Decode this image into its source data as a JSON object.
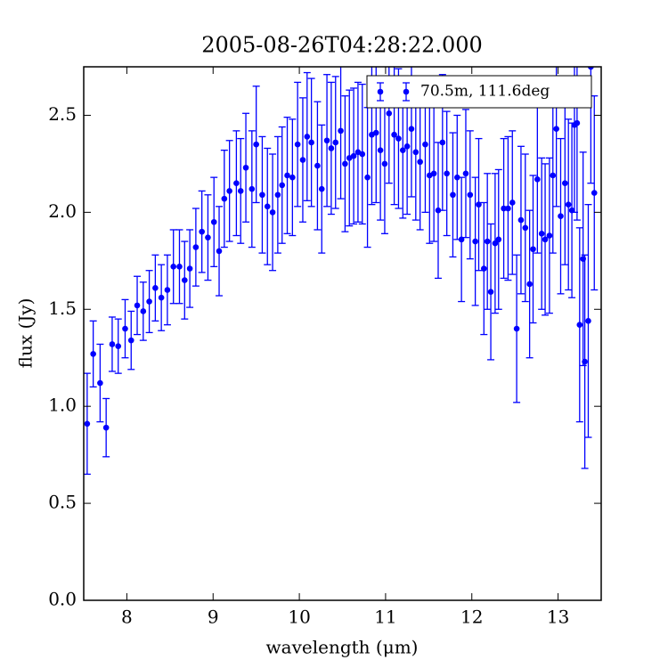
{
  "chart_data": {
    "type": "scatter",
    "title": "2005-08-26T04:28:22.000",
    "xlabel": "wavelength (μm)",
    "ylabel": "flux (Jy)",
    "xlim": [
      7.5,
      13.5
    ],
    "ylim": [
      0,
      2.75
    ],
    "xticks": [
      8,
      9,
      10,
      11,
      12,
      13
    ],
    "yticks": [
      {
        "value": 0,
        "label": "0.0"
      },
      {
        "value": 0.5,
        "label": "0.5"
      },
      {
        "value": 1,
        "label": "1.0"
      },
      {
        "value": 1.5,
        "label": "1.5"
      },
      {
        "value": 2,
        "label": "2.0"
      },
      {
        "value": 2.5,
        "label": "2.5"
      }
    ],
    "grid": false,
    "legend": "upper right",
    "series": [
      {
        "name": "70.5m, 111.6deg",
        "color": "#0000ff",
        "x": [
          7.54,
          7.61,
          7.69,
          7.76,
          7.83,
          7.9,
          7.98,
          8.05,
          8.12,
          8.19,
          8.26,
          8.33,
          8.4,
          8.47,
          8.54,
          8.61,
          8.67,
          8.73,
          8.8,
          8.87,
          8.94,
          9.01,
          9.07,
          9.13,
          9.19,
          9.27,
          9.32,
          9.38,
          9.45,
          9.5,
          9.57,
          9.63,
          9.69,
          9.75,
          9.8,
          9.86,
          9.92,
          9.98,
          10.04,
          10.09,
          10.14,
          10.21,
          10.26,
          10.32,
          10.37,
          10.42,
          10.48,
          10.53,
          10.58,
          10.63,
          10.68,
          10.73,
          10.79,
          10.84,
          10.89,
          10.94,
          10.99,
          11.04,
          11.1,
          11.15,
          11.2,
          11.25,
          11.3,
          11.35,
          11.4,
          11.46,
          11.51,
          11.56,
          11.61,
          11.66,
          11.71,
          11.78,
          11.83,
          11.88,
          11.93,
          11.98,
          12.04,
          12.08,
          12.14,
          12.18,
          12.22,
          12.27,
          12.31,
          12.37,
          12.42,
          12.47,
          12.52,
          12.57,
          12.62,
          12.67,
          12.71,
          12.76,
          12.81,
          12.85,
          12.9,
          12.94,
          12.98,
          13.03,
          13.08,
          13.12,
          13.16,
          13.19,
          13.22,
          13.25,
          13.29,
          13.31,
          13.35,
          13.38,
          13.42
        ],
        "values": [
          0.91,
          1.27,
          1.12,
          0.89,
          1.32,
          1.31,
          1.4,
          1.34,
          1.52,
          1.49,
          1.54,
          1.61,
          1.56,
          1.6,
          1.72,
          1.72,
          1.65,
          1.71,
          1.82,
          1.9,
          1.87,
          1.95,
          1.8,
          2.07,
          2.11,
          2.15,
          2.11,
          2.23,
          2.12,
          2.35,
          2.09,
          2.03,
          2.0,
          2.09,
          2.14,
          2.19,
          2.18,
          2.35,
          2.27,
          2.39,
          2.36,
          2.24,
          2.12,
          2.37,
          2.33,
          2.36,
          2.42,
          2.25,
          2.28,
          2.29,
          2.31,
          2.3,
          2.18,
          2.4,
          2.41,
          2.32,
          2.25,
          2.51,
          2.4,
          2.38,
          2.32,
          2.34,
          2.43,
          2.31,
          2.26,
          2.35,
          2.19,
          2.2,
          2.01,
          2.36,
          2.2,
          2.09,
          2.18,
          1.86,
          2.2,
          2.09,
          1.85,
          2.04,
          1.71,
          1.85,
          1.59,
          1.84,
          1.86,
          2.02,
          2.02,
          2.05,
          1.4,
          1.96,
          1.92,
          1.63,
          1.81,
          2.17,
          1.89,
          1.86,
          1.88,
          2.19,
          2.43,
          1.98,
          2.15,
          2.04,
          2.01,
          2.45,
          2.46,
          1.42,
          1.76,
          1.23,
          1.44,
          2.75,
          2.1
        ],
        "errors": [
          0.26,
          0.17,
          0.2,
          0.15,
          0.14,
          0.14,
          0.15,
          0.15,
          0.15,
          0.15,
          0.16,
          0.17,
          0.17,
          0.18,
          0.19,
          0.19,
          0.2,
          0.2,
          0.2,
          0.21,
          0.22,
          0.23,
          0.23,
          0.25,
          0.26,
          0.27,
          0.27,
          0.28,
          0.3,
          0.3,
          0.3,
          0.3,
          0.3,
          0.3,
          0.3,
          0.3,
          0.3,
          0.32,
          0.32,
          0.33,
          0.33,
          0.33,
          0.33,
          0.34,
          0.34,
          0.34,
          0.35,
          0.35,
          0.35,
          0.35,
          0.36,
          0.36,
          0.36,
          0.36,
          0.36,
          0.36,
          0.36,
          0.36,
          0.36,
          0.36,
          0.35,
          0.35,
          0.35,
          0.35,
          0.35,
          0.35,
          0.35,
          0.35,
          0.35,
          0.35,
          0.32,
          0.32,
          0.32,
          0.32,
          0.33,
          0.33,
          0.33,
          0.34,
          0.34,
          0.35,
          0.35,
          0.36,
          0.36,
          0.36,
          0.37,
          0.37,
          0.38,
          0.38,
          0.38,
          0.38,
          0.38,
          0.38,
          0.39,
          0.39,
          0.4,
          0.4,
          0.4,
          0.4,
          0.42,
          0.44,
          0.45,
          0.45,
          0.5,
          0.5,
          0.55,
          0.55,
          0.6,
          0.6,
          0.5
        ]
      }
    ]
  }
}
